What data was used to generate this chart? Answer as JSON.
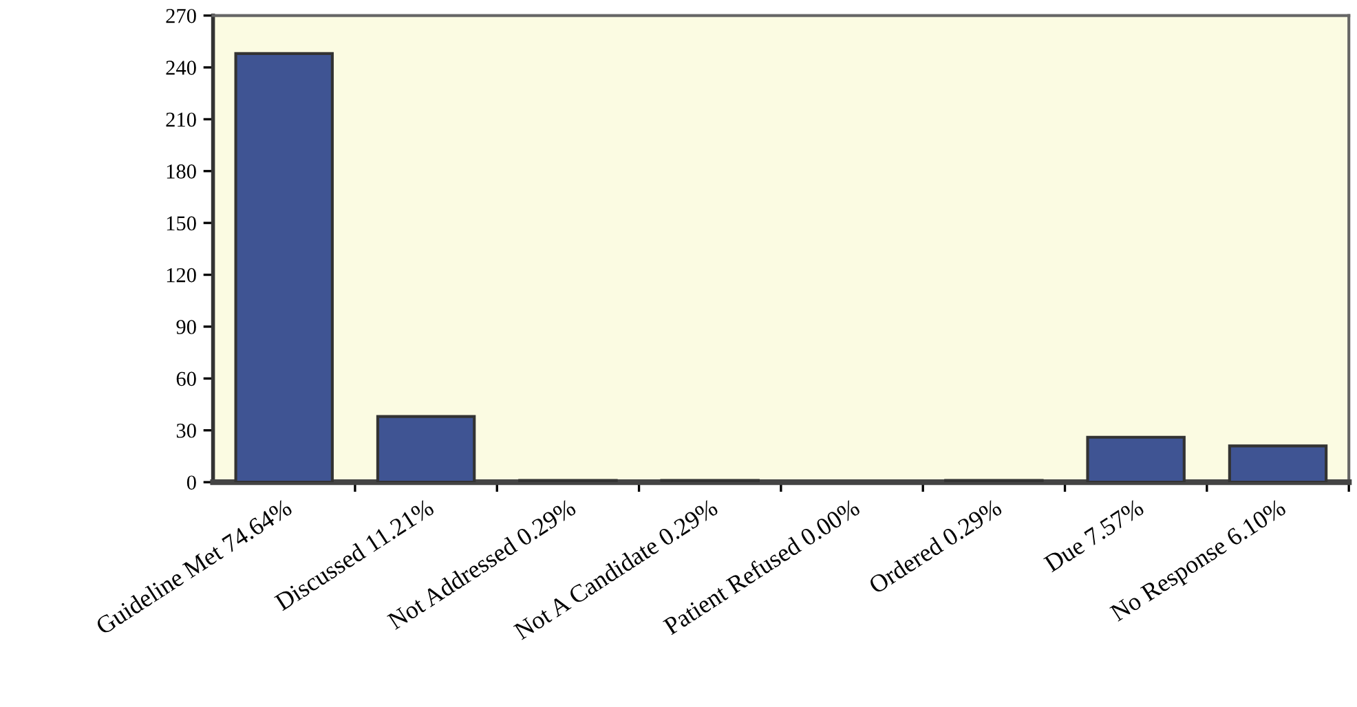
{
  "chart_data": {
    "type": "bar",
    "categories": [
      "Guideline Met 74.64%",
      "Discussed 11.21%",
      "Not Addressed 0.29%",
      "Not A Candidate 0.29%",
      "Patient Refused 0.00%",
      "Ordered 0.29%",
      "Due 7.57%",
      "No Response 6.10%"
    ],
    "values": [
      248,
      38,
      1,
      1,
      0,
      1,
      26,
      21
    ],
    "color": "#3f5493",
    "ylim": [
      0,
      270
    ],
    "yticks": [
      0,
      30,
      60,
      90,
      120,
      150,
      180,
      210,
      240,
      270
    ],
    "grid": false
  }
}
